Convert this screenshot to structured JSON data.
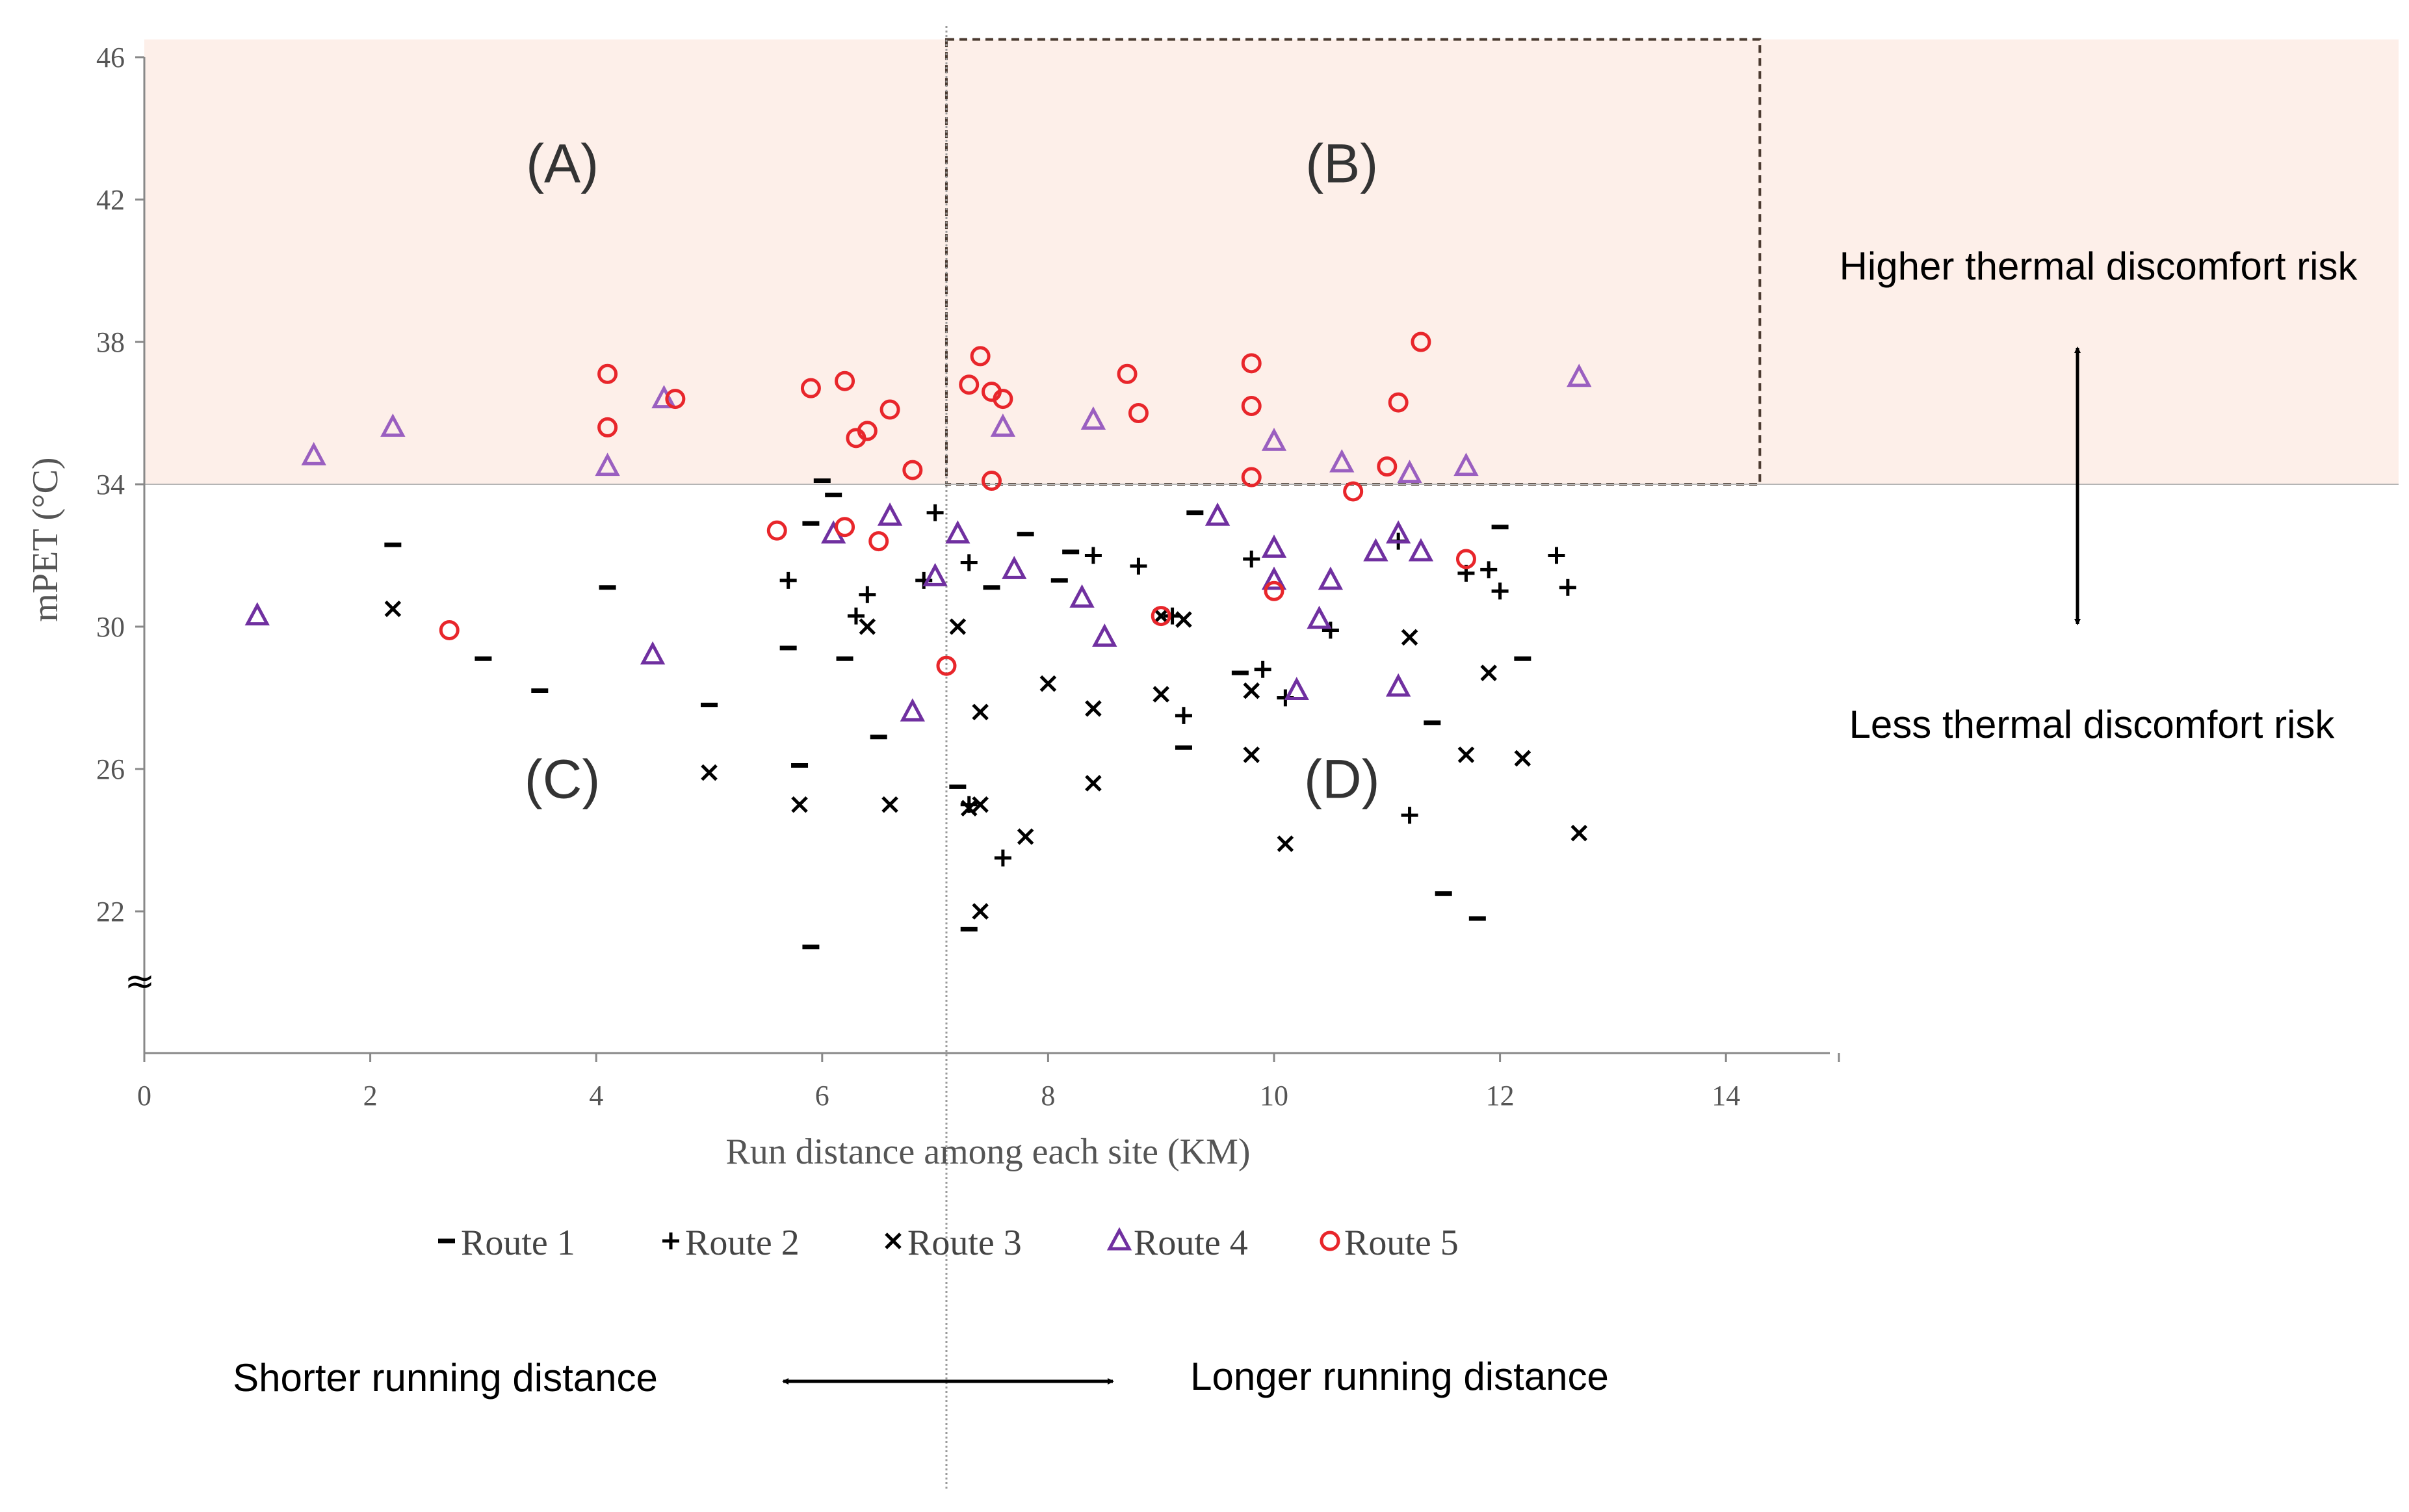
{
  "chart_data": {
    "type": "scatter",
    "xlabel": "Run distance among each site (KM)",
    "ylabel": "mPET (°C)",
    "xlim": [
      0,
      15
    ],
    "ylim": [
      18,
      46
    ],
    "x_ticks": [
      0,
      2,
      4,
      6,
      8,
      10,
      12,
      14
    ],
    "y_ticks": [
      22,
      26,
      30,
      34,
      38,
      42,
      46
    ],
    "axis_break_symbol": "≈",
    "thresholds": {
      "x": 7.1,
      "y": 34
    },
    "regions": [
      {
        "label": "(A)",
        "x": 3.7,
        "y": 43.0
      },
      {
        "label": "(B)",
        "x": 10.6,
        "y": 43.0
      },
      {
        "label": "(C)",
        "x": 3.7,
        "y": 25.7
      },
      {
        "label": "(D)",
        "x": 10.6,
        "y": 25.7
      }
    ],
    "highlight_box": {
      "x0": 7.1,
      "x1": 14.3,
      "y0": 34,
      "y1": 46.5
    },
    "annotations": {
      "higher_risk": "Higher thermal discomfort risk",
      "less_risk": "Less thermal discomfort risk",
      "shorter": "Shorter running distance",
      "longer": "Longer running distance"
    },
    "series": [
      {
        "name": "Route 1",
        "marker": "dash",
        "color": "#000000",
        "x": [
          2.2,
          3.0,
          3.5,
          4.1,
          5.0,
          5.7,
          5.8,
          5.9,
          5.9,
          6.0,
          6.1,
          6.2,
          6.5,
          7.2,
          7.3,
          7.5,
          7.8,
          8.1,
          8.2,
          9.2,
          9.3,
          9.7,
          11.4,
          11.5,
          11.8,
          12.0,
          12.2
        ],
        "y": [
          32.3,
          29.1,
          28.2,
          31.1,
          27.8,
          29.4,
          26.1,
          32.9,
          21.0,
          34.1,
          33.7,
          29.1,
          26.9,
          25.5,
          21.5,
          31.1,
          32.6,
          31.3,
          32.1,
          26.6,
          33.2,
          28.7,
          27.3,
          22.5,
          21.8,
          32.8,
          29.1
        ]
      },
      {
        "name": "Route 2",
        "marker": "plus",
        "color": "#000000",
        "x": [
          5.7,
          6.3,
          6.4,
          6.9,
          7.0,
          7.3,
          7.3,
          7.6,
          8.4,
          8.8,
          9.1,
          9.2,
          9.8,
          9.9,
          10.1,
          10.5,
          11.1,
          11.2,
          11.7,
          11.9,
          12.0,
          12.5,
          12.6
        ],
        "y": [
          31.3,
          30.3,
          30.9,
          31.3,
          33.2,
          31.8,
          25.0,
          23.5,
          32.0,
          31.7,
          30.3,
          27.5,
          31.9,
          28.8,
          28.0,
          29.9,
          32.4,
          24.7,
          31.5,
          31.6,
          31.0,
          32.0,
          31.1
        ]
      },
      {
        "name": "Route 3",
        "marker": "x",
        "color": "#000000",
        "x": [
          2.2,
          5.0,
          5.8,
          6.4,
          6.6,
          7.2,
          7.3,
          7.4,
          7.4,
          7.4,
          7.8,
          8.0,
          8.4,
          8.4,
          9.0,
          9.0,
          9.2,
          9.8,
          9.8,
          10.1,
          11.2,
          11.7,
          11.9,
          12.2,
          12.7
        ],
        "y": [
          30.5,
          25.9,
          25.0,
          30.0,
          25.0,
          30.0,
          24.9,
          27.6,
          25.0,
          22.0,
          24.1,
          28.4,
          27.7,
          25.6,
          28.1,
          30.3,
          30.2,
          26.4,
          28.2,
          23.9,
          29.7,
          26.4,
          28.7,
          26.3,
          24.2
        ]
      },
      {
        "name": "Route 4",
        "marker": "triangle",
        "color": "#7030a0",
        "x": [
          1.0,
          1.5,
          2.2,
          4.1,
          4.5,
          4.6,
          6.1,
          6.6,
          6.8,
          7.0,
          7.2,
          7.6,
          7.7,
          8.3,
          8.4,
          8.5,
          9.5,
          10.0,
          10.0,
          10.0,
          10.2,
          10.4,
          10.5,
          10.6,
          10.9,
          11.1,
          11.1,
          11.2,
          11.3,
          11.7,
          12.7
        ],
        "y": [
          30.3,
          34.8,
          35.6,
          34.5,
          29.2,
          36.4,
          32.6,
          33.1,
          27.6,
          31.4,
          32.6,
          35.6,
          31.6,
          30.8,
          35.8,
          29.7,
          33.1,
          35.2,
          32.2,
          31.3,
          28.2,
          30.2,
          31.3,
          34.6,
          32.1,
          32.6,
          28.3,
          34.3,
          32.1,
          34.5,
          37.0
        ]
      },
      {
        "name": "Route 5",
        "marker": "circle",
        "color": "#e8262b",
        "x": [
          2.7,
          4.1,
          4.1,
          4.7,
          5.6,
          5.9,
          6.2,
          6.2,
          6.3,
          6.4,
          6.5,
          6.6,
          6.8,
          7.1,
          7.3,
          7.4,
          7.5,
          7.5,
          7.6,
          8.7,
          8.8,
          9.0,
          9.8,
          9.8,
          9.8,
          10.0,
          10.7,
          11.0,
          11.1,
          11.3,
          11.7
        ],
        "y": [
          29.9,
          37.1,
          35.6,
          36.4,
          32.7,
          36.7,
          36.9,
          32.8,
          35.3,
          35.5,
          32.4,
          36.1,
          34.4,
          28.9,
          36.8,
          37.6,
          36.6,
          34.1,
          36.4,
          37.1,
          36.0,
          30.3,
          37.4,
          36.2,
          34.2,
          31.0,
          33.8,
          34.5,
          36.3,
          38.0,
          31.9
        ]
      }
    ]
  }
}
